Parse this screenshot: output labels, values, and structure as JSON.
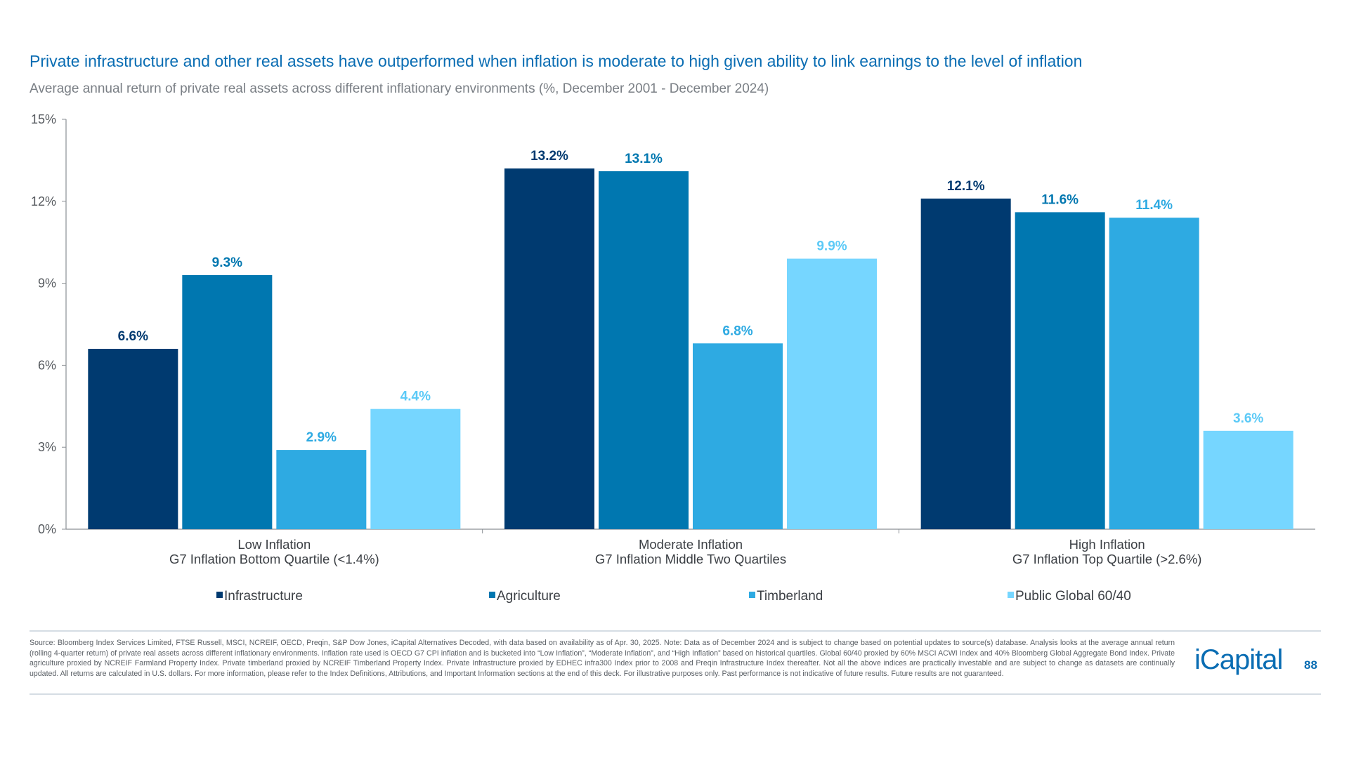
{
  "title": "Private infrastructure and other real assets have outperformed when inflation is moderate to high given ability to link earnings to the level of inflation",
  "subtitle": "Average annual return of private real assets across different inflationary environments (%, December 2001 - December 2024)",
  "chart_data": {
    "type": "bar",
    "categories": [
      [
        "Low Inflation",
        "G7 Inflation Bottom Quartile (<1.4%)"
      ],
      [
        "Moderate Inflation",
        "G7 Inflation Middle Two Quartiles"
      ],
      [
        "High Inflation",
        "G7 Inflation Top Quartile (>2.6%)"
      ]
    ],
    "series": [
      {
        "name": "Infrastructure",
        "color": "#003a70",
        "values": [
          6.6,
          13.2,
          12.1
        ],
        "labels": [
          "6.6%",
          "13.2%",
          "12.1%"
        ]
      },
      {
        "name": "Agriculture",
        "color": "#0077b0",
        "values": [
          9.3,
          13.1,
          11.6
        ],
        "labels": [
          "9.3%",
          "13.1%",
          "11.6%"
        ]
      },
      {
        "name": "Timberland",
        "color": "#2eaae2",
        "values": [
          2.9,
          6.8,
          11.4
        ],
        "labels": [
          "2.9%",
          "6.8%",
          "11.4%"
        ]
      },
      {
        "name": "Public Global 60/40",
        "color": "#76d6ff",
        "values": [
          4.4,
          9.9,
          3.6
        ],
        "labels": [
          "4.4%",
          "9.9%",
          "3.6%"
        ]
      }
    ],
    "yticks": [
      "0%",
      "3%",
      "6%",
      "9%",
      "12%",
      "15%"
    ],
    "ylim": [
      0,
      15
    ],
    "grid": false,
    "legend_placement": "bottom"
  },
  "footnote": "Source: Bloomberg Index Services Limited, FTSE Russell, MSCI, NCREIF, OECD, Preqin, S&P Dow Jones, iCapital Alternatives Decoded, with data based on availability as of Apr. 30, 2025. Note: Data as of December 2024 and is subject to change based on potential updates to source(s) database. Analysis looks at the average annual return (rolling 4-quarter return) of private real assets across different inflationary environments. Inflation rate used is OECD G7 CPI inflation and is bucketed into “Low Inflation”, “Moderate Inflation”, and “High Inflation” based on historical quartiles. Global 60/40 proxied by 60% MSCI ACWI Index and 40% Bloomberg Global Aggregate Bond Index. Private agriculture proxied by NCREIF Farmland Property Index. Private timberland proxied by NCREIF Timberland Property Index. Private Infrastructure proxied by EDHEC infra300 Index prior to 2008 and Preqin Infrastructure Index thereafter. Not all the above indices are practically investable and are subject to change as datasets are continually updated. All returns are calculated in U.S. dollars. For more information, please refer to the Index Definitions, Attributions, and Important Information sections at the end of this deck. For illustrative purposes only. Past performance is not indicative of future results. Future results are not guaranteed.",
  "logo": "iCapital",
  "page_number": "88"
}
